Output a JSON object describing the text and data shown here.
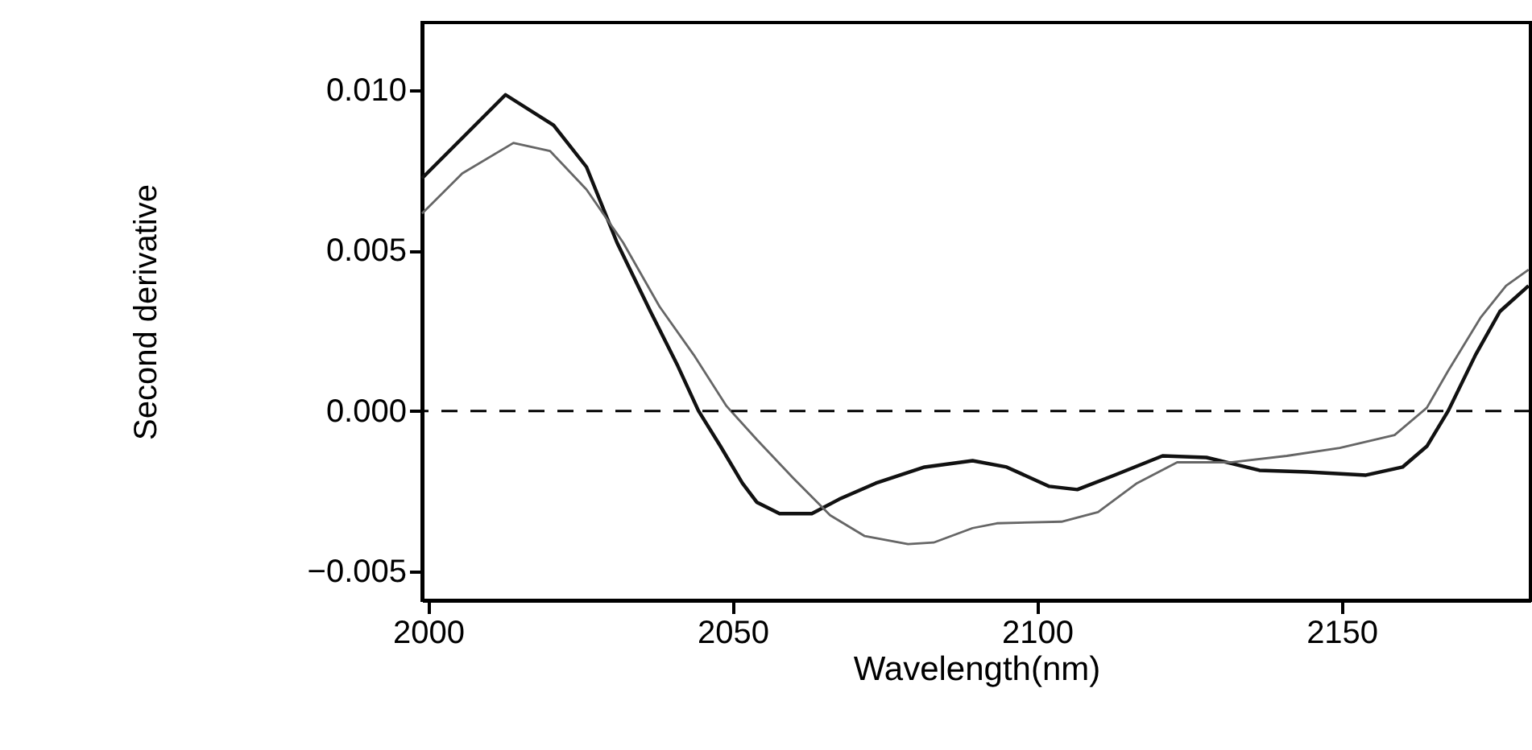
{
  "chart_data": {
    "type": "line",
    "xlabel": "Wavelength(nm)",
    "ylabel": "Second derivative",
    "xlim": [
      1999,
      2181
    ],
    "ylim": [
      -0.0059,
      0.0121
    ],
    "xticks": [
      2000,
      2050,
      2100,
      2150
    ],
    "yticks": [
      {
        "value": -0.005,
        "label": "−0.005"
      },
      {
        "value": 0,
        "label": "0.000"
      },
      {
        "value": 0.005,
        "label": "0.005"
      },
      {
        "value": 0.01,
        "label": "0.010"
      }
    ],
    "grid": false,
    "marker": "none",
    "line_style": "solid",
    "ref_lines": [
      {
        "axis": "y",
        "value": 0,
        "color": "#000000",
        "line_style": "dashed"
      }
    ],
    "series": [
      {
        "color": "#111111",
        "x": [
          1999,
          2012.7,
          2020.6,
          2026,
          2031,
          2036.5,
          2041,
          2044.4,
          2048,
          2051.6,
          2054,
          2057.7,
          2063,
          2067.5,
          2073.5,
          2081.5,
          2089.4,
          2095,
          2102,
          2106.6,
          2112.7,
          2120.6,
          2127.8,
          2136.5,
          2144.4,
          2154,
          2160,
          2164,
          2167.5,
          2172,
          2176,
          2180.7
        ],
        "values": [
          0.00725,
          0.00985,
          0.0089,
          0.0076,
          0.00525,
          0.0031,
          0.0014,
          0,
          -0.0011,
          -0.00225,
          -0.00285,
          -0.0032,
          -0.0032,
          -0.00275,
          -0.00225,
          -0.00175,
          -0.00155,
          -0.00175,
          -0.00235,
          -0.00245,
          -0.002,
          -0.0014,
          -0.00145,
          -0.00185,
          -0.0019,
          -0.002,
          -0.00175,
          -0.0011,
          0,
          0.00175,
          0.0031,
          0.0039
        ]
      },
      {
        "color": "#666666",
        "x": [
          1999,
          2005.6,
          2014,
          2020,
          2026,
          2032,
          2038,
          2043.6,
          2049,
          2054,
          2060,
          2066,
          2071.7,
          2078.8,
          2083,
          2089.4,
          2093.4,
          2104,
          2110,
          2116.4,
          2123,
          2132,
          2141,
          2149.7,
          2158.7,
          2164,
          2167.5,
          2172.8,
          2177,
          2180.7
        ],
        "values": [
          0.00615,
          0.0074,
          0.00835,
          0.0081,
          0.0069,
          0.00525,
          0.00325,
          0.00175,
          0.00015,
          -0.0009,
          -0.0021,
          -0.00325,
          -0.0039,
          -0.00415,
          -0.0041,
          -0.00365,
          -0.0035,
          -0.00345,
          -0.00315,
          -0.00225,
          -0.0016,
          -0.0016,
          -0.0014,
          -0.00115,
          -0.00075,
          0.0001,
          0.00125,
          0.0029,
          0.0039,
          0.0044
        ]
      }
    ]
  }
}
